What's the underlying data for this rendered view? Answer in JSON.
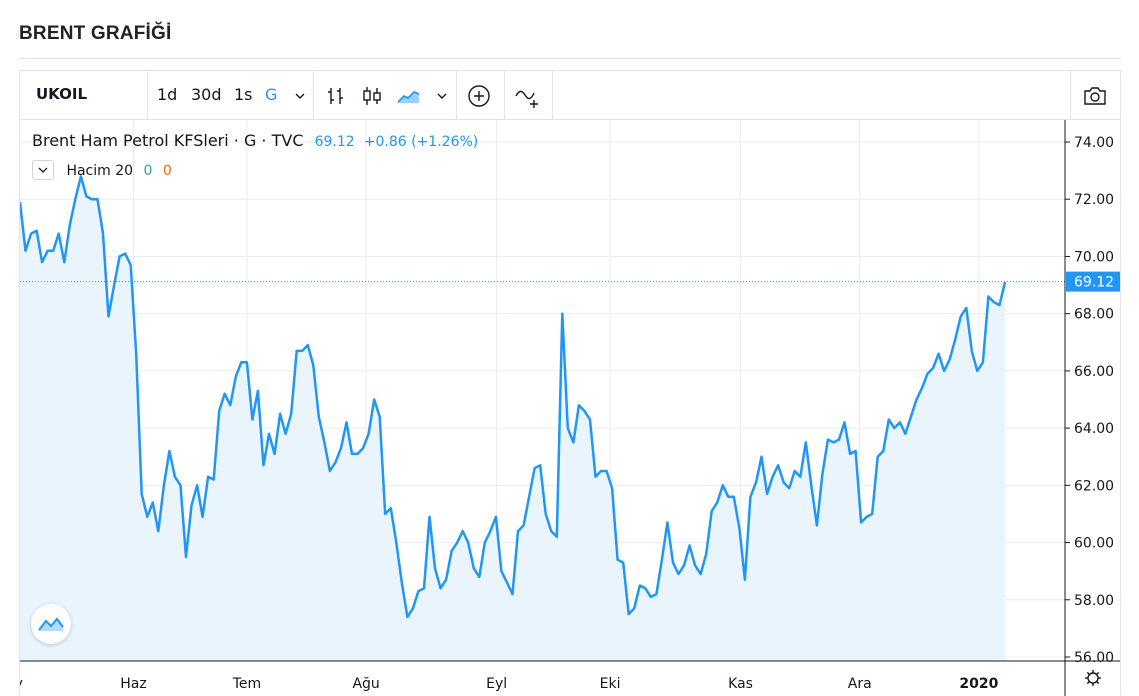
{
  "page": {
    "title": "BRENT GRAFİĞİ"
  },
  "toolbar": {
    "symbol": "UKOIL",
    "intervals": [
      "1d",
      "30d",
      "1s",
      "G"
    ],
    "active_interval": "G",
    "icons": [
      "chevron-down-icon",
      "bar-chart-icon",
      "candlestick-icon",
      "area-chart-icon",
      "chevron-down-icon",
      "add-indicator-icon",
      "compare-icon",
      "camera-icon"
    ]
  },
  "legend": {
    "title": "Brent Ham Petrol KFSleri · G · TVC",
    "price": "69.12",
    "change": "+0.86 (+1.26%)"
  },
  "volume": {
    "label": "Hacim 20",
    "value1": "0",
    "value2": "0"
  },
  "colors": {
    "line": "#2196f3",
    "area": "#eaf4fd",
    "grid": "#e9ecf2",
    "price_label_bg": "#2196f3",
    "up": "#26a69a",
    "down": "#ef6c00"
  },
  "chart_data": {
    "type": "area",
    "title": "",
    "xlabel": "",
    "ylabel": "",
    "ylim": [
      56,
      74.5
    ],
    "yticks": [
      "56.00",
      "58.00",
      "60.00",
      "62.00",
      "64.00",
      "66.00",
      "68.00",
      "70.00",
      "72.00",
      "74.00"
    ],
    "xticks": [
      {
        "label": "ay",
        "day": 0
      },
      {
        "label": "Haz",
        "day": 20
      },
      {
        "label": "Tem",
        "day": 40
      },
      {
        "label": "Ağu",
        "day": 61
      },
      {
        "label": "Eyl",
        "day": 84
      },
      {
        "label": "Eki",
        "day": 104
      },
      {
        "label": "Kas",
        "day": 127
      },
      {
        "label": "Ara",
        "day": 148
      },
      {
        "label": "2020",
        "day": 169
      }
    ],
    "x_day_range": [
      0,
      173.6
    ],
    "last_price": 69.12,
    "series": [
      {
        "values": [
          71.9,
          70.2,
          70.8,
          70.9,
          69.8,
          70.2,
          70.2,
          70.8,
          69.8,
          71.1,
          72.0,
          72.8,
          72.1,
          72.0,
          72.0,
          70.8,
          67.9,
          69.0,
          70.0,
          70.1,
          69.7,
          66.6,
          61.7,
          60.9,
          61.4,
          60.4,
          62.0,
          63.2,
          62.3,
          62.0,
          59.5,
          61.3,
          62.0,
          60.9,
          62.3,
          62.2,
          64.6,
          65.2,
          64.8,
          65.8,
          66.3,
          66.3,
          64.3,
          65.3,
          62.7,
          63.8,
          63.1,
          64.5,
          63.8,
          64.5,
          66.7,
          66.7,
          66.9,
          66.2,
          64.4,
          63.5,
          62.5,
          62.8,
          63.3,
          64.2,
          63.1,
          63.1,
          63.3,
          63.8,
          65.0,
          64.4,
          61.0,
          61.2,
          60.0,
          58.6,
          57.4,
          57.7,
          58.3,
          58.4,
          60.9,
          59.1,
          58.4,
          58.7,
          59.7,
          60.0,
          60.4,
          60.0,
          59.1,
          58.8,
          60.0,
          60.4,
          60.9,
          59.0,
          58.6,
          58.2,
          60.4,
          60.6,
          61.6,
          62.6,
          62.7,
          61.0,
          60.4,
          60.2,
          68.0,
          64.0,
          63.5,
          64.8,
          64.6,
          64.3,
          62.3,
          62.5,
          62.5,
          61.9,
          59.4,
          59.3,
          57.5,
          57.7,
          58.5,
          58.4,
          58.1,
          58.2,
          59.4,
          60.7,
          59.3,
          58.9,
          59.2,
          59.9,
          59.2,
          58.9,
          59.6,
          61.1,
          61.4,
          62.0,
          61.6,
          61.6,
          60.5,
          58.7,
          61.6,
          62.1,
          63.0,
          61.7,
          62.3,
          62.7,
          62.1,
          61.9,
          62.5,
          62.3,
          63.5,
          62.0,
          60.6,
          62.4,
          63.6,
          63.5,
          63.6,
          64.2,
          63.1,
          63.2,
          60.7,
          60.9,
          61.0,
          63.0,
          63.2,
          64.3,
          64.0,
          64.2,
          63.8,
          64.4,
          65.0,
          65.4,
          65.9,
          66.1,
          66.6,
          66.0,
          66.4,
          67.1,
          67.9,
          68.2,
          66.7,
          66.0,
          66.3,
          68.6,
          68.4,
          68.3,
          69.1
        ]
      }
    ]
  }
}
